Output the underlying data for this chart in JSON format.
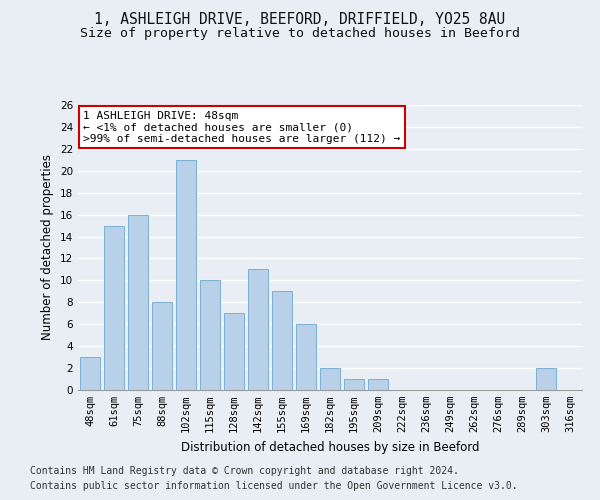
{
  "title": "1, ASHLEIGH DRIVE, BEEFORD, DRIFFIELD, YO25 8AU",
  "subtitle": "Size of property relative to detached houses in Beeford",
  "xlabel": "Distribution of detached houses by size in Beeford",
  "ylabel": "Number of detached properties",
  "categories": [
    "48sqm",
    "61sqm",
    "75sqm",
    "88sqm",
    "102sqm",
    "115sqm",
    "128sqm",
    "142sqm",
    "155sqm",
    "169sqm",
    "182sqm",
    "195sqm",
    "209sqm",
    "222sqm",
    "236sqm",
    "249sqm",
    "262sqm",
    "276sqm",
    "289sqm",
    "303sqm",
    "316sqm"
  ],
  "values": [
    3,
    15,
    16,
    8,
    21,
    10,
    7,
    11,
    9,
    6,
    2,
    1,
    1,
    0,
    0,
    0,
    0,
    0,
    0,
    2,
    0
  ],
  "bar_color": "#b8d0e8",
  "bar_edge_color": "#7aafd4",
  "ylim": [
    0,
    26
  ],
  "yticks": [
    0,
    2,
    4,
    6,
    8,
    10,
    12,
    14,
    16,
    18,
    20,
    22,
    24,
    26
  ],
  "annotation_text": "1 ASHLEIGH DRIVE: 48sqm\n← <1% of detached houses are smaller (0)\n>99% of semi-detached houses are larger (112) →",
  "annotation_box_color": "#ffffff",
  "annotation_border_color": "#cc0000",
  "footer_line1": "Contains HM Land Registry data © Crown copyright and database right 2024.",
  "footer_line2": "Contains public sector information licensed under the Open Government Licence v3.0.",
  "background_color": "#e8eef4",
  "grid_color": "#ffffff",
  "title_fontsize": 10.5,
  "subtitle_fontsize": 9.5,
  "tick_fontsize": 7.5,
  "ylabel_fontsize": 8.5,
  "xlabel_fontsize": 8.5,
  "annotation_fontsize": 8,
  "footer_fontsize": 7
}
